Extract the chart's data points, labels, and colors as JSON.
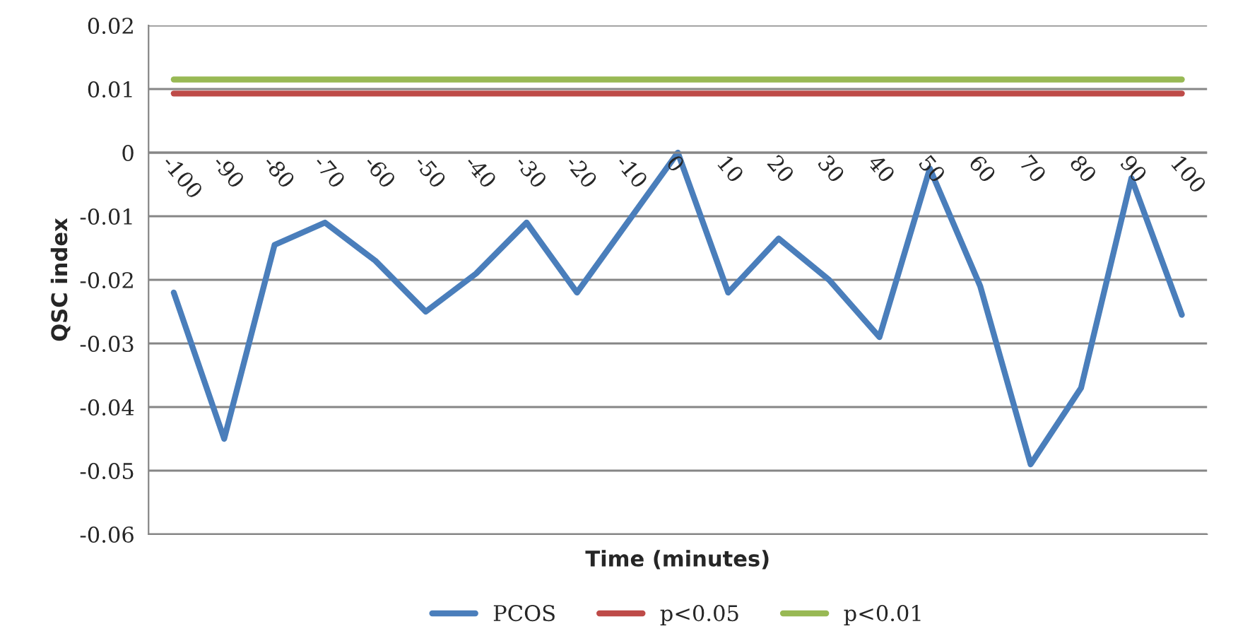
{
  "chart_data": {
    "type": "line",
    "xlabel": "Time (minutes)",
    "ylabel": "QSC index",
    "categories": [
      "-100",
      "-90",
      "-80",
      "-70",
      "-60",
      "-50",
      "-40",
      "-30",
      "-20",
      "-10",
      "0",
      "10",
      "20",
      "30",
      "40",
      "50",
      "60",
      "70",
      "80",
      "90",
      "100"
    ],
    "series": [
      {
        "name": "PCOS",
        "color": "#4a7ebb",
        "values": [
          -0.022,
          -0.045,
          -0.0145,
          -0.011,
          -0.017,
          -0.025,
          -0.019,
          -0.011,
          -0.022,
          -0.011,
          0,
          -0.022,
          -0.0135,
          -0.02,
          -0.029,
          -0.0025,
          -0.021,
          -0.049,
          -0.037,
          -0.004,
          -0.0255
        ]
      },
      {
        "name": "p<0.05",
        "color": "#be4b48",
        "values": [
          0.0093,
          0.0093,
          0.0093,
          0.0093,
          0.0093,
          0.0093,
          0.0093,
          0.0093,
          0.0093,
          0.0093,
          0.0093,
          0.0093,
          0.0093,
          0.0093,
          0.0093,
          0.0093,
          0.0093,
          0.0093,
          0.0093,
          0.0093,
          0.0093
        ]
      },
      {
        "name": "p<0.01",
        "color": "#98b954",
        "values": [
          0.0115,
          0.0115,
          0.0115,
          0.0115,
          0.0115,
          0.0115,
          0.0115,
          0.0115,
          0.0115,
          0.0115,
          0.0115,
          0.0115,
          0.0115,
          0.0115,
          0.0115,
          0.0115,
          0.0115,
          0.0115,
          0.0115,
          0.0115,
          0.0115
        ]
      }
    ],
    "ylim": [
      -0.06,
      0.02
    ],
    "yticks": [
      -0.06,
      -0.05,
      -0.04,
      -0.03,
      -0.02,
      -0.01,
      0,
      0.01,
      0.02
    ],
    "grid": "y",
    "legend": "bottom",
    "marker": "none",
    "line_style": "solid"
  }
}
